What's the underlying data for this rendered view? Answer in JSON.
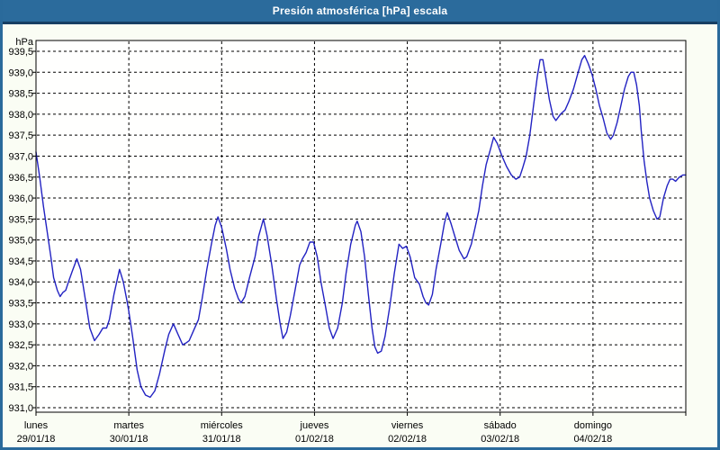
{
  "window": {
    "title": "Presión atmosférica [hPa] escala"
  },
  "colors": {
    "titlebar_bg": "#2b6b9c",
    "titlebar_separator": "#173f63",
    "window_border": "#2a6a9b",
    "page_bg": "#fafdf4",
    "plot_bg": "#fffffe",
    "grid_color": "#000000",
    "axis_color": "#000000",
    "line_color": "#2222c2",
    "text_color": "#000000"
  },
  "chart_data": {
    "type": "line",
    "title": "Presión atmosférica [hPa] escala",
    "unit_label": "hPa",
    "ylim": [
      931.0,
      939.5
    ],
    "y_tick_step": 0.5,
    "y_tick_labels": [
      "939,5",
      "939,0",
      "938,5",
      "938,0",
      "937,5",
      "937,0",
      "936,5",
      "936,0",
      "935,5",
      "935,0",
      "934,5",
      "934,0",
      "933,5",
      "933,0",
      "932,5",
      "932,0",
      "931,5",
      "931,0"
    ],
    "x_days": [
      {
        "name": "lunes",
        "date": "29/01/18"
      },
      {
        "name": "martes",
        "date": "30/01/18"
      },
      {
        "name": "miércoles",
        "date": "31/01/18"
      },
      {
        "name": "jueves",
        "date": "01/02/18"
      },
      {
        "name": "viernes",
        "date": "02/02/18"
      },
      {
        "name": "sábado",
        "date": "03/02/18"
      },
      {
        "name": "domingo",
        "date": "04/02/18"
      }
    ],
    "grid": "dashed",
    "legend_position": "none",
    "series": [
      {
        "name": "Presión atmosférica",
        "points": [
          [
            0.0,
            937.1
          ],
          [
            0.04,
            936.5
          ],
          [
            0.08,
            935.8
          ],
          [
            0.12,
            935.2
          ],
          [
            0.16,
            934.6
          ],
          [
            0.19,
            934.1
          ],
          [
            0.23,
            933.8
          ],
          [
            0.26,
            933.65
          ],
          [
            0.29,
            933.75
          ],
          [
            0.32,
            933.8
          ],
          [
            0.35,
            934.0
          ],
          [
            0.39,
            934.25
          ],
          [
            0.44,
            934.55
          ],
          [
            0.48,
            934.3
          ],
          [
            0.53,
            933.6
          ],
          [
            0.58,
            932.9
          ],
          [
            0.63,
            932.6
          ],
          [
            0.68,
            932.75
          ],
          [
            0.72,
            932.9
          ],
          [
            0.76,
            932.9
          ],
          [
            0.79,
            933.1
          ],
          [
            0.84,
            933.7
          ],
          [
            0.9,
            934.3
          ],
          [
            0.94,
            934.0
          ],
          [
            0.98,
            933.55
          ],
          [
            1.0,
            933.3
          ],
          [
            1.04,
            932.7
          ],
          [
            1.09,
            931.9
          ],
          [
            1.13,
            931.5
          ],
          [
            1.18,
            931.3
          ],
          [
            1.23,
            931.25
          ],
          [
            1.28,
            931.4
          ],
          [
            1.33,
            931.8
          ],
          [
            1.39,
            932.4
          ],
          [
            1.43,
            932.75
          ],
          [
            1.48,
            933.0
          ],
          [
            1.53,
            932.75
          ],
          [
            1.58,
            932.5
          ],
          [
            1.62,
            932.55
          ],
          [
            1.65,
            932.6
          ],
          [
            1.7,
            932.85
          ],
          [
            1.75,
            933.1
          ],
          [
            1.79,
            933.6
          ],
          [
            1.84,
            934.3
          ],
          [
            1.89,
            934.9
          ],
          [
            1.93,
            935.35
          ],
          [
            1.96,
            935.55
          ],
          [
            2.0,
            935.3
          ],
          [
            2.05,
            934.8
          ],
          [
            2.09,
            934.3
          ],
          [
            2.14,
            933.85
          ],
          [
            2.18,
            933.6
          ],
          [
            2.21,
            933.5
          ],
          [
            2.25,
            933.65
          ],
          [
            2.3,
            934.1
          ],
          [
            2.36,
            934.6
          ],
          [
            2.4,
            935.1
          ],
          [
            2.45,
            935.5
          ],
          [
            2.49,
            935.1
          ],
          [
            2.54,
            934.4
          ],
          [
            2.59,
            933.6
          ],
          [
            2.63,
            933.0
          ],
          [
            2.66,
            932.65
          ],
          [
            2.7,
            932.8
          ],
          [
            2.74,
            933.2
          ],
          [
            2.79,
            933.8
          ],
          [
            2.84,
            934.4
          ],
          [
            2.87,
            934.55
          ],
          [
            2.91,
            934.7
          ],
          [
            2.95,
            934.95
          ],
          [
            2.99,
            934.95
          ],
          [
            3.03,
            934.6
          ],
          [
            3.07,
            934.0
          ],
          [
            3.12,
            933.4
          ],
          [
            3.16,
            932.9
          ],
          [
            3.2,
            932.65
          ],
          [
            3.25,
            932.9
          ],
          [
            3.3,
            933.5
          ],
          [
            3.34,
            934.2
          ],
          [
            3.39,
            934.9
          ],
          [
            3.44,
            935.35
          ],
          [
            3.46,
            935.45
          ],
          [
            3.5,
            935.2
          ],
          [
            3.54,
            934.6
          ],
          [
            3.58,
            933.7
          ],
          [
            3.62,
            932.9
          ],
          [
            3.65,
            932.45
          ],
          [
            3.68,
            932.3
          ],
          [
            3.72,
            932.35
          ],
          [
            3.76,
            932.7
          ],
          [
            3.81,
            933.4
          ],
          [
            3.86,
            934.2
          ],
          [
            3.91,
            934.9
          ],
          [
            3.95,
            934.8
          ],
          [
            3.99,
            934.85
          ],
          [
            4.03,
            934.6
          ],
          [
            4.08,
            934.1
          ],
          [
            4.13,
            933.95
          ],
          [
            4.17,
            933.65
          ],
          [
            4.2,
            933.5
          ],
          [
            4.23,
            933.45
          ],
          [
            4.27,
            933.7
          ],
          [
            4.31,
            934.3
          ],
          [
            4.36,
            934.9
          ],
          [
            4.4,
            935.4
          ],
          [
            4.43,
            935.65
          ],
          [
            4.47,
            935.4
          ],
          [
            4.51,
            935.1
          ],
          [
            4.56,
            934.75
          ],
          [
            4.61,
            934.55
          ],
          [
            4.64,
            934.6
          ],
          [
            4.69,
            934.9
          ],
          [
            4.73,
            935.3
          ],
          [
            4.77,
            935.7
          ],
          [
            4.81,
            936.3
          ],
          [
            4.85,
            936.8
          ],
          [
            4.9,
            937.2
          ],
          [
            4.93,
            937.45
          ],
          [
            4.97,
            937.3
          ],
          [
            5.02,
            937.0
          ],
          [
            5.07,
            936.75
          ],
          [
            5.12,
            936.55
          ],
          [
            5.17,
            936.45
          ],
          [
            5.21,
            936.5
          ],
          [
            5.24,
            936.7
          ],
          [
            5.28,
            937.0
          ],
          [
            5.32,
            937.5
          ],
          [
            5.36,
            938.2
          ],
          [
            5.4,
            938.9
          ],
          [
            5.43,
            939.3
          ],
          [
            5.46,
            939.3
          ],
          [
            5.49,
            938.9
          ],
          [
            5.53,
            938.35
          ],
          [
            5.57,
            937.95
          ],
          [
            5.6,
            937.85
          ],
          [
            5.65,
            938.0
          ],
          [
            5.7,
            938.1
          ],
          [
            5.74,
            938.3
          ],
          [
            5.79,
            938.6
          ],
          [
            5.84,
            939.0
          ],
          [
            5.88,
            939.3
          ],
          [
            5.91,
            939.4
          ],
          [
            5.95,
            939.2
          ],
          [
            5.99,
            938.95
          ],
          [
            6.03,
            938.6
          ],
          [
            6.07,
            938.2
          ],
          [
            6.11,
            937.9
          ],
          [
            6.15,
            937.55
          ],
          [
            6.19,
            937.4
          ],
          [
            6.22,
            937.5
          ],
          [
            6.26,
            937.8
          ],
          [
            6.3,
            938.2
          ],
          [
            6.34,
            938.6
          ],
          [
            6.38,
            938.9
          ],
          [
            6.41,
            939.0
          ],
          [
            6.44,
            939.0
          ],
          [
            6.47,
            938.7
          ],
          [
            6.5,
            938.2
          ],
          [
            6.52,
            937.6
          ],
          [
            6.55,
            936.9
          ],
          [
            6.58,
            936.4
          ],
          [
            6.61,
            936.0
          ],
          [
            6.65,
            935.7
          ],
          [
            6.69,
            935.5
          ],
          [
            6.72,
            935.55
          ],
          [
            6.76,
            936.0
          ],
          [
            6.8,
            936.3
          ],
          [
            6.83,
            936.45
          ],
          [
            6.86,
            936.45
          ],
          [
            6.89,
            936.4
          ],
          [
            6.93,
            936.5
          ],
          [
            6.97,
            936.55
          ],
          [
            7.0,
            936.55
          ]
        ]
      }
    ]
  }
}
